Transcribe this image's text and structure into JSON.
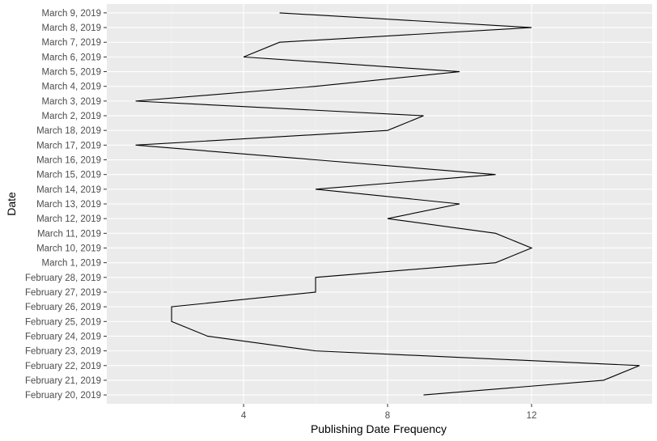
{
  "chart_data": {
    "type": "line",
    "orientation": "horizontal",
    "title": "",
    "xlabel": "Publishing Date Frequency",
    "ylabel": "Date",
    "xlim": [
      0.2,
      15.35
    ],
    "x_ticks": [
      4,
      8,
      12
    ],
    "categories": [
      "February 20, 2019",
      "February 21, 2019",
      "February 22, 2019",
      "February 23, 2019",
      "February 24, 2019",
      "February 25, 2019",
      "February 26, 2019",
      "February 27, 2019",
      "February 28, 2019",
      "March 1, 2019",
      "March 10, 2019",
      "March 11, 2019",
      "March 12, 2019",
      "March 13, 2019",
      "March 14, 2019",
      "March 15, 2019",
      "March 16, 2019",
      "March 17, 2019",
      "March 18, 2019",
      "March 2, 2019",
      "March 3, 2019",
      "March 4, 2019",
      "March 5, 2019",
      "March 6, 2019",
      "March 7, 2019",
      "March 8, 2019",
      "March 9, 2019"
    ],
    "values": [
      9,
      14,
      15,
      6,
      3,
      2,
      2,
      6,
      6,
      11,
      12,
      11,
      8,
      10,
      6,
      11,
      6,
      1,
      8,
      9,
      1,
      6,
      10,
      4,
      5,
      12,
      5
    ],
    "grid": true,
    "legend": "none",
    "colors": {
      "panel_background": "#ebebeb",
      "grid_major": "#ffffff",
      "grid_minor": "#f5f5f5",
      "line": "#000000"
    }
  }
}
